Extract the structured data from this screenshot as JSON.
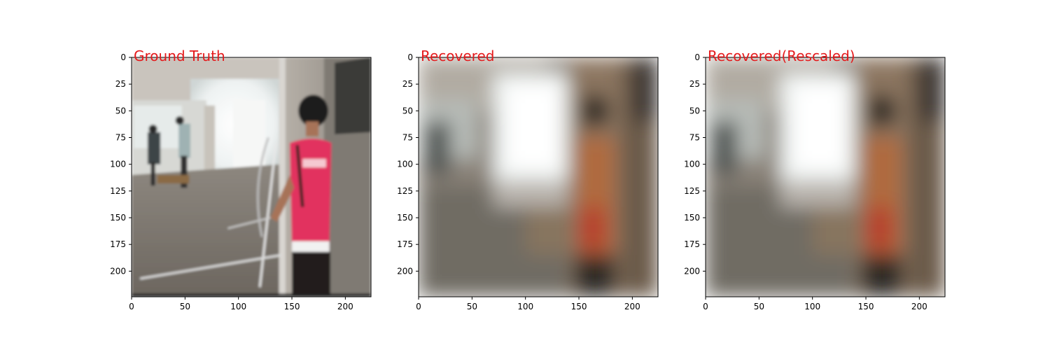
{
  "chart_data": [
    {
      "type": "image",
      "title": "Ground Truth",
      "title_color": "#e41a1c",
      "xlim": [
        0,
        224
      ],
      "ylim": [
        224,
        0
      ],
      "xticks": [
        0,
        50,
        100,
        150,
        200
      ],
      "yticks": [
        0,
        25,
        50,
        75,
        100,
        125,
        150,
        175,
        200
      ],
      "image_content": "sharp-indoor-scene"
    },
    {
      "type": "image",
      "title": "Recovered",
      "title_color": "#e41a1c",
      "xlim": [
        0,
        224
      ],
      "ylim": [
        224,
        0
      ],
      "xticks": [
        0,
        50,
        100,
        150,
        200
      ],
      "yticks": [
        0,
        25,
        50,
        75,
        100,
        125,
        150,
        175,
        200
      ],
      "image_content": "blurred-indoor-scene"
    },
    {
      "type": "image",
      "title": "Recovered(Rescaled)",
      "title_color": "#e41a1c",
      "xlim": [
        0,
        224
      ],
      "ylim": [
        224,
        0
      ],
      "xticks": [
        0,
        50,
        100,
        150,
        200
      ],
      "yticks": [
        0,
        25,
        50,
        75,
        100,
        125,
        150,
        175,
        200
      ],
      "image_content": "blurred-indoor-scene"
    }
  ]
}
